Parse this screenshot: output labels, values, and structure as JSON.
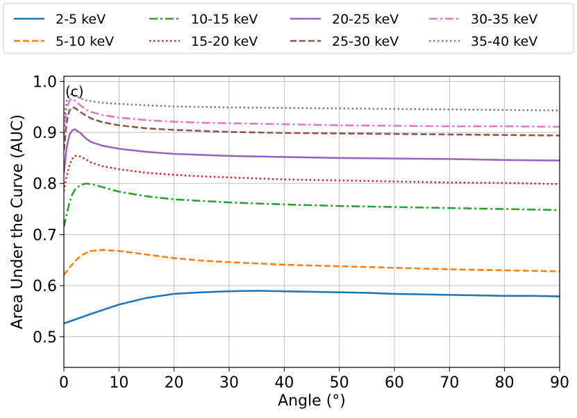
{
  "chart_data": {
    "type": "line",
    "panel_label": "(c)",
    "xlabel": "Angle (°)",
    "ylabel": "Area Under the Curve (AUC)",
    "xlim": [
      0,
      90
    ],
    "ylim": [
      0.44,
      1.01
    ],
    "xticks": [
      0,
      10,
      20,
      30,
      40,
      50,
      60,
      70,
      80,
      90
    ],
    "yticks": [
      0.5,
      0.6,
      0.7,
      0.8,
      0.9,
      1.0
    ],
    "yticklabels": [
      "0.5",
      "0.6",
      "0.7",
      "0.8",
      "0.9",
      "1.0"
    ],
    "grid": true,
    "legend_position": "top, above plot (4 columns)",
    "series": [
      {
        "name": "2-5 keV",
        "color": "#1f77b4",
        "dash": "solid",
        "x": [
          0,
          5,
          10,
          15,
          20,
          25,
          30,
          35,
          40,
          45,
          50,
          55,
          60,
          65,
          70,
          75,
          80,
          85,
          90
        ],
        "y": [
          0.526,
          0.545,
          0.563,
          0.576,
          0.584,
          0.587,
          0.589,
          0.59,
          0.589,
          0.588,
          0.587,
          0.586,
          0.584,
          0.583,
          0.582,
          0.581,
          0.58,
          0.58,
          0.579
        ]
      },
      {
        "name": "5-10 keV",
        "color": "#ff7f0e",
        "dash": "dashed",
        "x": [
          0,
          1,
          2,
          3,
          4,
          5,
          7,
          10,
          15,
          20,
          25,
          30,
          40,
          50,
          60,
          70,
          80,
          90
        ],
        "y": [
          0.621,
          0.635,
          0.648,
          0.658,
          0.664,
          0.668,
          0.67,
          0.668,
          0.661,
          0.654,
          0.649,
          0.646,
          0.641,
          0.638,
          0.635,
          0.632,
          0.63,
          0.628
        ]
      },
      {
        "name": "10-15 keV",
        "color": "#2ca02c",
        "dash": "dashdot",
        "x": [
          0,
          0.5,
          1,
          1.5,
          2,
          3,
          4,
          5,
          7,
          10,
          15,
          20,
          25,
          30,
          40,
          50,
          60,
          70,
          80,
          90
        ],
        "y": [
          0.715,
          0.74,
          0.762,
          0.778,
          0.788,
          0.797,
          0.8,
          0.799,
          0.793,
          0.784,
          0.775,
          0.769,
          0.766,
          0.763,
          0.759,
          0.756,
          0.754,
          0.752,
          0.75,
          0.748
        ]
      },
      {
        "name": "15-20 keV",
        "color": "#d62728",
        "dash": "dotted",
        "x": [
          0,
          0.5,
          1,
          1.5,
          2,
          3,
          4,
          5,
          7,
          10,
          15,
          20,
          25,
          30,
          40,
          50,
          60,
          70,
          80,
          90
        ],
        "y": [
          0.785,
          0.815,
          0.835,
          0.848,
          0.854,
          0.853,
          0.847,
          0.841,
          0.834,
          0.828,
          0.821,
          0.817,
          0.814,
          0.812,
          0.808,
          0.806,
          0.804,
          0.802,
          0.801,
          0.799
        ]
      },
      {
        "name": "20-25 keV",
        "color": "#9467bd",
        "dash": "solid",
        "x": [
          0,
          0.5,
          1,
          1.5,
          2,
          3,
          4,
          5,
          7,
          10,
          15,
          20,
          25,
          30,
          40,
          50,
          60,
          70,
          80,
          90
        ],
        "y": [
          0.82,
          0.87,
          0.895,
          0.904,
          0.906,
          0.899,
          0.888,
          0.881,
          0.874,
          0.868,
          0.862,
          0.858,
          0.856,
          0.854,
          0.852,
          0.85,
          0.849,
          0.848,
          0.846,
          0.845
        ]
      },
      {
        "name": "25-30 keV",
        "color": "#8c564b",
        "dash": "dashed",
        "x": [
          0,
          0.5,
          1,
          1.5,
          2,
          3,
          4,
          5,
          7,
          10,
          15,
          20,
          25,
          30,
          40,
          50,
          60,
          70,
          80,
          90
        ],
        "y": [
          0.865,
          0.92,
          0.943,
          0.949,
          0.948,
          0.94,
          0.933,
          0.927,
          0.92,
          0.914,
          0.908,
          0.905,
          0.903,
          0.901,
          0.899,
          0.898,
          0.897,
          0.896,
          0.895,
          0.894
        ]
      },
      {
        "name": "30-35 keV",
        "color": "#e377c2",
        "dash": "dashdot",
        "x": [
          0,
          0.5,
          1,
          1.5,
          2,
          3,
          4,
          5,
          7,
          10,
          15,
          20,
          25,
          30,
          40,
          50,
          60,
          70,
          80,
          90
        ],
        "y": [
          0.89,
          0.945,
          0.963,
          0.966,
          0.962,
          0.953,
          0.945,
          0.94,
          0.934,
          0.929,
          0.924,
          0.921,
          0.919,
          0.918,
          0.916,
          0.914,
          0.913,
          0.912,
          0.912,
          0.911
        ]
      },
      {
        "name": "35-40 keV",
        "color": "#7f7f7f",
        "dash": "dotted",
        "x": [
          0,
          0.5,
          1,
          1.5,
          2,
          3,
          4,
          5,
          7,
          10,
          15,
          20,
          25,
          30,
          40,
          50,
          60,
          70,
          80,
          90
        ],
        "y": [
          0.92,
          0.962,
          0.974,
          0.975,
          0.972,
          0.967,
          0.963,
          0.961,
          0.958,
          0.956,
          0.953,
          0.951,
          0.95,
          0.949,
          0.948,
          0.947,
          0.946,
          0.945,
          0.944,
          0.943
        ]
      }
    ]
  }
}
